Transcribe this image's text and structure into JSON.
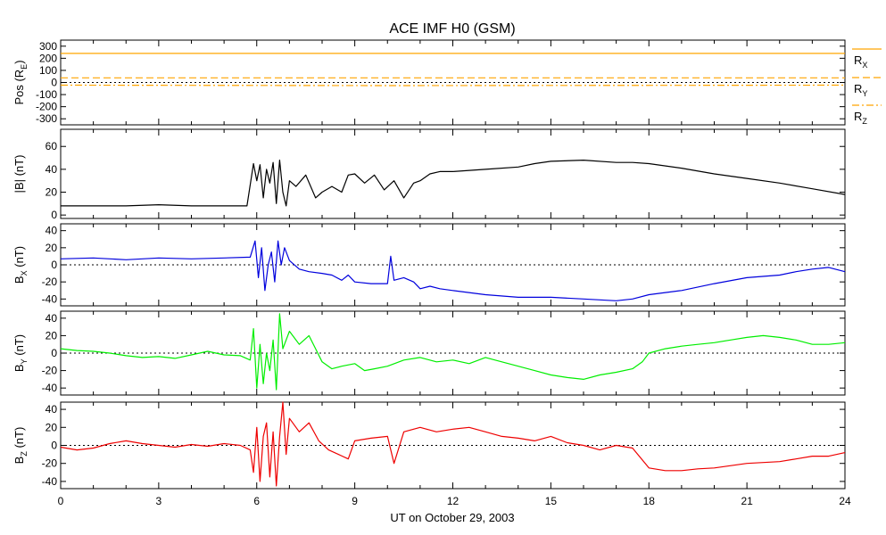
{
  "title": "ACE IMF H0 (GSM)",
  "xlabel": "UT on October 29, 2003",
  "chart_data": [
    {
      "type": "line",
      "ylabel_main": "Pos (R",
      "ylabel_sub": "E",
      "ylabel_tail": ")",
      "xlim": [
        0,
        24
      ],
      "ylim": [
        -350,
        350
      ],
      "yticks": [
        300,
        200,
        100,
        0,
        -100,
        -200,
        -300
      ],
      "zero_line": true,
      "legend": [
        {
          "main": "R",
          "sub": "X",
          "style": "solid"
        },
        {
          "main": "R",
          "sub": "Y",
          "style": "dashed"
        },
        {
          "main": "R",
          "sub": "Z",
          "style": "dashdot"
        }
      ],
      "series": [
        {
          "color": "#ffa500",
          "style": "solid",
          "x": [
            0,
            24
          ],
          "y": [
            240,
            240
          ]
        },
        {
          "color": "#ffa500",
          "style": "dashed",
          "x": [
            0,
            24
          ],
          "y": [
            38,
            38
          ]
        },
        {
          "color": "#ffa500",
          "style": "dashdot",
          "x": [
            0,
            10,
            24
          ],
          "y": [
            -22,
            -26,
            -22
          ]
        }
      ]
    },
    {
      "type": "line",
      "ylabel_main": "|B| (nT)",
      "ylabel_sub": "",
      "ylabel_tail": "",
      "xlim": [
        0,
        24
      ],
      "ylim": [
        -3,
        75
      ],
      "yticks": [
        60,
        40,
        20,
        0
      ],
      "zero_line": false,
      "series": [
        {
          "color": "#000000",
          "style": "solid",
          "x": [
            0,
            1,
            2,
            3,
            4,
            5,
            5.7,
            5.9,
            6.0,
            6.1,
            6.2,
            6.3,
            6.4,
            6.5,
            6.6,
            6.7,
            6.8,
            6.9,
            7.0,
            7.2,
            7.5,
            7.8,
            8.0,
            8.3,
            8.6,
            8.8,
            9.0,
            9.3,
            9.6,
            9.9,
            10.2,
            10.5,
            10.8,
            11.0,
            11.3,
            11.6,
            12,
            13,
            14,
            14.5,
            15,
            16,
            17,
            17.5,
            18,
            19,
            20,
            21,
            22,
            23,
            24
          ],
          "y": [
            8,
            8,
            8,
            9,
            8,
            8,
            8,
            45,
            30,
            44,
            15,
            40,
            28,
            46,
            10,
            48,
            20,
            8,
            30,
            25,
            35,
            15,
            20,
            25,
            20,
            35,
            36,
            28,
            35,
            22,
            30,
            15,
            28,
            30,
            36,
            38,
            38,
            40,
            42,
            45,
            47,
            48,
            46,
            46,
            45,
            41,
            36,
            32,
            28,
            23,
            18
          ]
        }
      ]
    },
    {
      "type": "line",
      "ylabel_main": "B",
      "ylabel_sub": "X",
      "ylabel_tail": " (nT)",
      "xlim": [
        0,
        24
      ],
      "ylim": [
        -48,
        48
      ],
      "yticks": [
        40,
        20,
        0,
        -20,
        -40
      ],
      "zero_line": true,
      "series": [
        {
          "color": "#0000dd",
          "style": "solid",
          "x": [
            0,
            1,
            2,
            3,
            4,
            5,
            5.8,
            5.95,
            6.05,
            6.15,
            6.25,
            6.35,
            6.45,
            6.55,
            6.65,
            6.75,
            6.85,
            7.0,
            7.3,
            7.6,
            8.0,
            8.3,
            8.6,
            8.8,
            9.0,
            9.5,
            10.0,
            10.1,
            10.2,
            10.5,
            10.8,
            11.0,
            11.3,
            11.6,
            12,
            13,
            14,
            15,
            16,
            17,
            17.5,
            18,
            19,
            20,
            21,
            22,
            22.5,
            23,
            23.5,
            24
          ],
          "y": [
            7,
            8,
            6,
            8,
            7,
            8,
            9,
            28,
            -15,
            20,
            -30,
            0,
            15,
            -20,
            28,
            0,
            20,
            5,
            -5,
            -8,
            -10,
            -12,
            -18,
            -12,
            -20,
            -22,
            -22,
            10,
            -18,
            -15,
            -20,
            -28,
            -25,
            -28,
            -30,
            -35,
            -38,
            -38,
            -40,
            -42,
            -40,
            -35,
            -30,
            -22,
            -15,
            -12,
            -8,
            -5,
            -3,
            -8
          ]
        }
      ]
    },
    {
      "type": "line",
      "ylabel_main": "B",
      "ylabel_sub": "Y",
      "ylabel_tail": " (nT)",
      "xlim": [
        0,
        24
      ],
      "ylim": [
        -48,
        48
      ],
      "yticks": [
        40,
        20,
        0,
        -20,
        -40
      ],
      "zero_line": true,
      "series": [
        {
          "color": "#00ee00",
          "style": "solid",
          "x": [
            0,
            0.5,
            1,
            1.5,
            2,
            2.5,
            3,
            3.5,
            4,
            4.5,
            5,
            5.5,
            5.8,
            5.9,
            6.0,
            6.1,
            6.2,
            6.3,
            6.4,
            6.5,
            6.6,
            6.7,
            6.8,
            7.0,
            7.3,
            7.6,
            7.8,
            8.0,
            8.3,
            8.6,
            9.0,
            9.3,
            9.6,
            10.0,
            10.5,
            11.0,
            11.5,
            12,
            12.5,
            13,
            13.5,
            14,
            14.5,
            15,
            15.5,
            16,
            16.5,
            17,
            17.5,
            17.8,
            18,
            18.5,
            19,
            19.5,
            20,
            20.5,
            21,
            21.5,
            22,
            22.5,
            23,
            23.5,
            24
          ],
          "y": [
            5,
            3,
            2,
            0,
            -3,
            -5,
            -4,
            -6,
            -2,
            2,
            -2,
            -3,
            -8,
            28,
            -40,
            10,
            -35,
            0,
            -20,
            15,
            -42,
            45,
            5,
            25,
            10,
            20,
            5,
            -10,
            -18,
            -15,
            -12,
            -20,
            -18,
            -15,
            -8,
            -5,
            -10,
            -8,
            -12,
            -5,
            -10,
            -15,
            -20,
            -25,
            -28,
            -30,
            -25,
            -22,
            -18,
            -10,
            0,
            5,
            8,
            10,
            12,
            15,
            18,
            20,
            18,
            15,
            10,
            10,
            12
          ]
        }
      ]
    },
    {
      "type": "line",
      "ylabel_main": "B",
      "ylabel_sub": "Z",
      "ylabel_tail": " (nT)",
      "xlim": [
        0,
        24
      ],
      "ylim": [
        -48,
        48
      ],
      "yticks": [
        40,
        20,
        0,
        -20,
        -40
      ],
      "zero_line": true,
      "series": [
        {
          "color": "#ee0000",
          "style": "solid",
          "x": [
            0,
            0.5,
            1,
            1.5,
            2,
            2.5,
            3,
            3.5,
            4,
            4.5,
            5,
            5.5,
            5.8,
            5.9,
            6.0,
            6.1,
            6.2,
            6.3,
            6.4,
            6.5,
            6.6,
            6.7,
            6.8,
            6.9,
            7.0,
            7.3,
            7.6,
            7.9,
            8.2,
            8.5,
            8.8,
            9.0,
            9.5,
            10.0,
            10.2,
            10.5,
            11.0,
            11.5,
            12,
            12.5,
            13,
            13.5,
            14,
            14.5,
            15,
            15.5,
            16,
            16.5,
            17,
            17.5,
            18,
            18.5,
            19,
            19.5,
            20,
            21,
            22,
            22.5,
            23,
            23.5,
            24
          ],
          "y": [
            -2,
            -5,
            -3,
            2,
            5,
            2,
            0,
            -2,
            1,
            -1,
            2,
            0,
            -5,
            -30,
            20,
            -40,
            10,
            25,
            -35,
            15,
            -45,
            10,
            48,
            -10,
            30,
            15,
            25,
            5,
            -5,
            -10,
            -15,
            5,
            8,
            10,
            -20,
            15,
            20,
            15,
            18,
            20,
            15,
            10,
            8,
            5,
            10,
            3,
            0,
            -5,
            0,
            -3,
            -25,
            -28,
            -28,
            -26,
            -25,
            -20,
            -18,
            -15,
            -12,
            -12,
            -8
          ]
        }
      ]
    }
  ],
  "xticks": [
    "0",
    "3",
    "6",
    "9",
    "12",
    "15",
    "18",
    "21",
    "24"
  ]
}
